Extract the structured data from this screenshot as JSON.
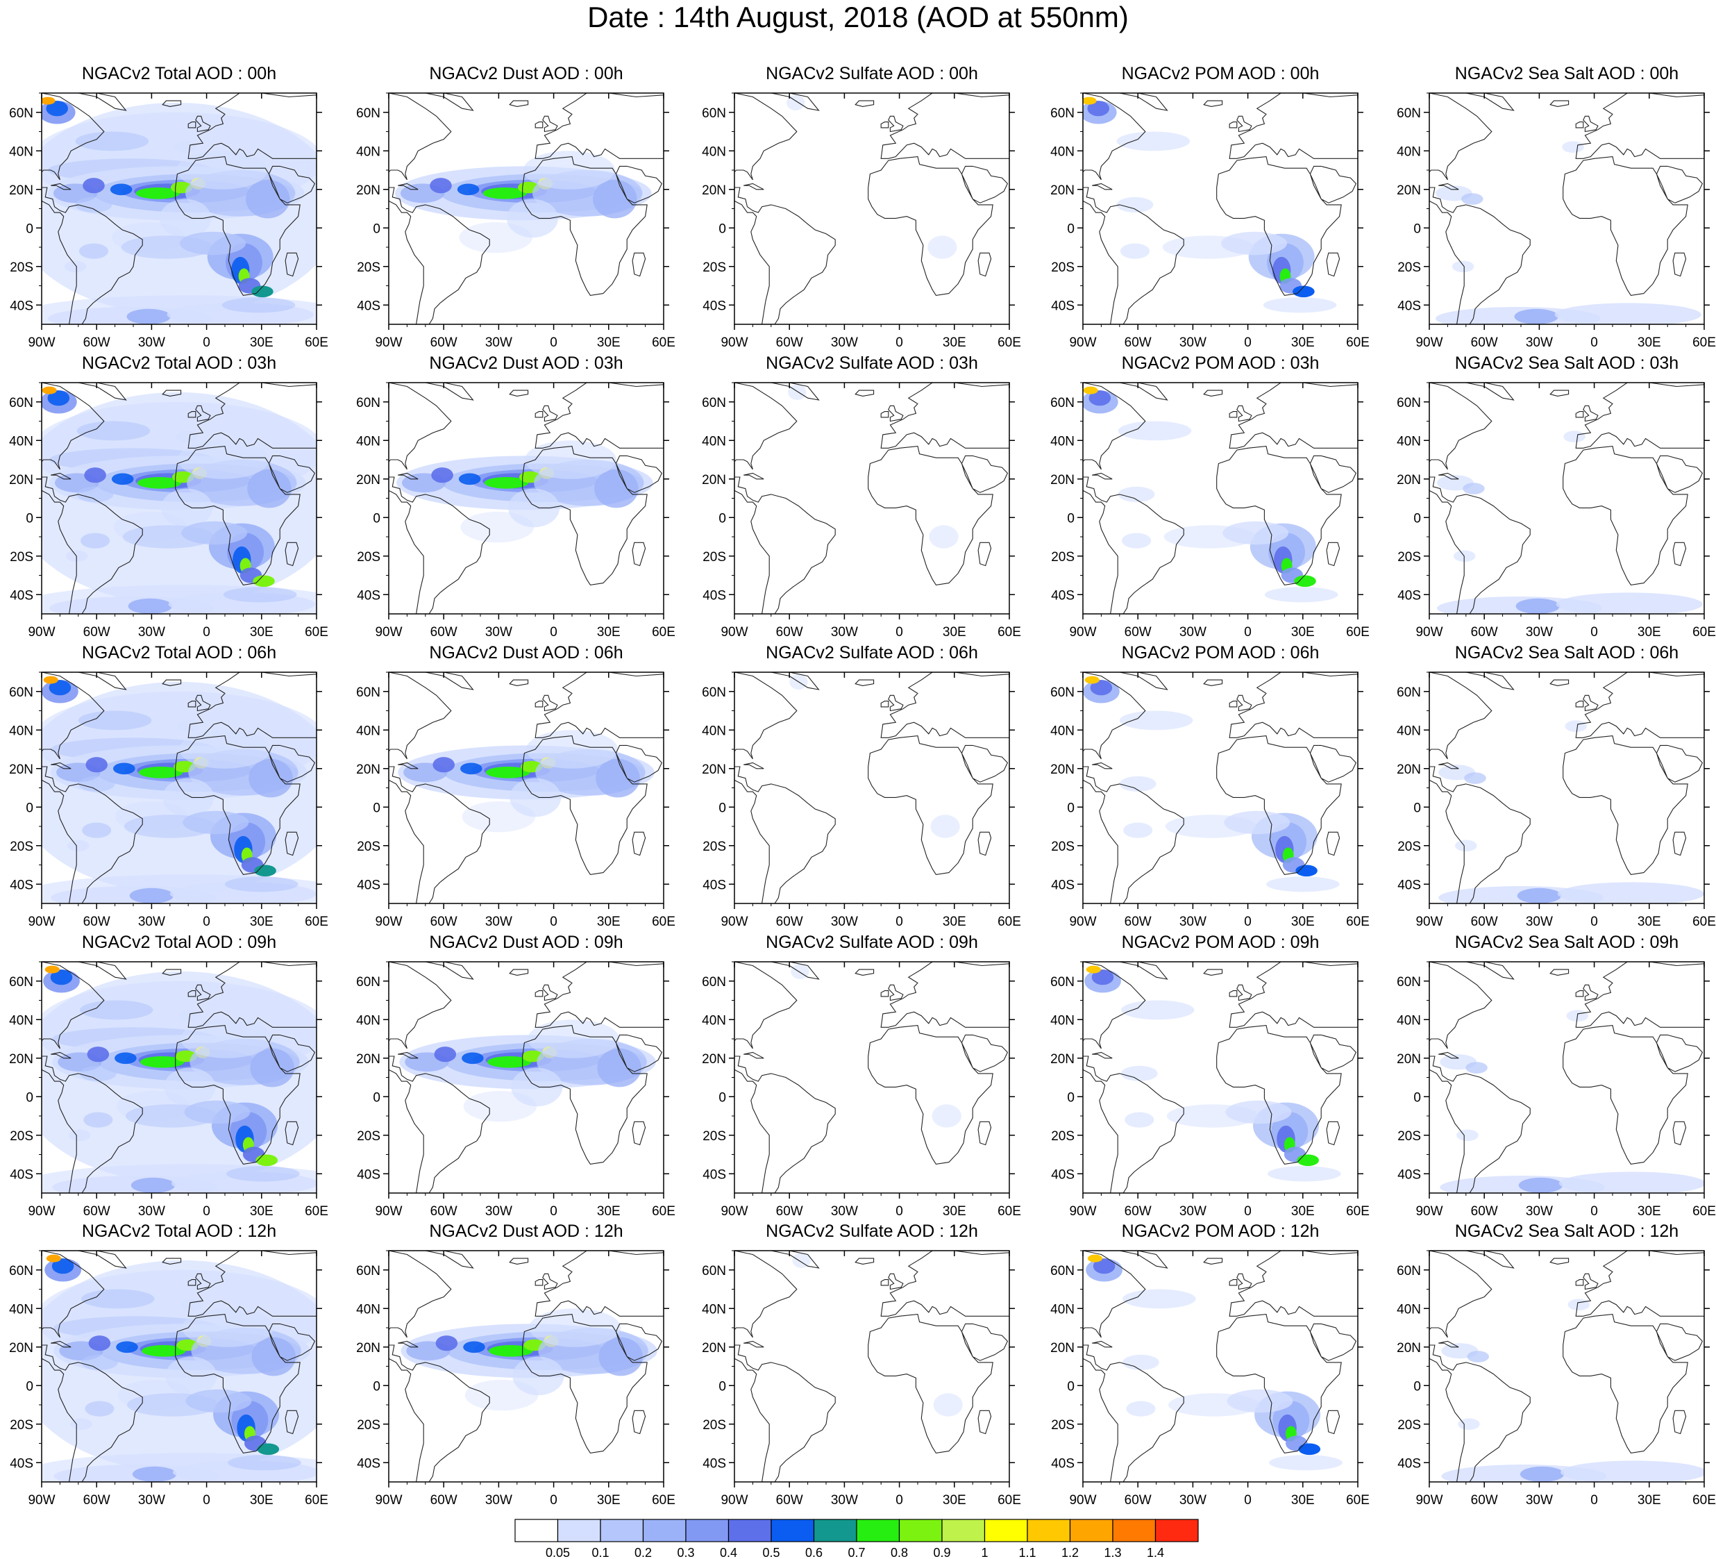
{
  "title": "Date : 14th August, 2018 (AOD at 550nm)",
  "columns": [
    "Total",
    "Dust",
    "Sulfate",
    "POM",
    "Sea Salt"
  ],
  "rows": [
    "00h",
    "03h",
    "06h",
    "09h",
    "12h"
  ],
  "panel_titles": [
    [
      "NGACv2 Total AOD : 00h",
      "NGACv2 Dust AOD : 00h",
      "NGACv2 Sulfate AOD : 00h",
      "NGACv2 POM AOD : 00h",
      "NGACv2 Sea Salt AOD : 00h"
    ],
    [
      "NGACv2 Total AOD : 03h",
      "NGACv2 Dust AOD : 03h",
      "NGACv2 Sulfate AOD : 03h",
      "NGACv2 POM AOD : 03h",
      "NGACv2 Sea Salt AOD : 03h"
    ],
    [
      "NGACv2 Total AOD : 06h",
      "NGACv2 Dust AOD : 06h",
      "NGACv2 Sulfate AOD : 06h",
      "NGACv2 POM AOD : 06h",
      "NGACv2 Sea Salt AOD : 06h"
    ],
    [
      "NGACv2 Total AOD : 09h",
      "NGACv2 Dust AOD : 09h",
      "NGACv2 Sulfate AOD : 09h",
      "NGACv2 POM AOD : 09h",
      "NGACv2 Sea Salt  AOD : 09h"
    ],
    [
      "NGACv2 Total AOD  : 12h",
      "NGACv2 Dust AOD : 12h",
      "NGACv2 Sulfate AOD : 12h",
      "NGACv2 POM  AOD : 12h",
      "NGACv2 Sea Salt  AOD : 12h"
    ]
  ],
  "lon_ticks": [
    "90W",
    "60W",
    "30W",
    "0",
    "30E",
    "60E"
  ],
  "lat_ticks": [
    "60N",
    "40N",
    "20N",
    "0",
    "20S",
    "40S"
  ],
  "lon_range": [
    -90,
    60
  ],
  "lat_range": [
    -50,
    70
  ],
  "colorbar": {
    "labels": [
      "0.05",
      "0.1",
      "0.2",
      "0.3",
      "0.4",
      "0.5",
      "0.6",
      "0.7",
      "0.8",
      "0.9",
      "1",
      "1.1",
      "1.2",
      "1.3",
      "1.4"
    ],
    "colors": [
      "#ffffff",
      "#d4dfff",
      "#b4c6fb",
      "#9cb2f8",
      "#8299f4",
      "#5d70ea",
      "#0a5df0",
      "#12988e",
      "#26ee10",
      "#7cf210",
      "#bff24a",
      "#ffff00",
      "#ffc800",
      "#ffa500",
      "#ff7a00",
      "#ff2a10"
    ]
  }
}
